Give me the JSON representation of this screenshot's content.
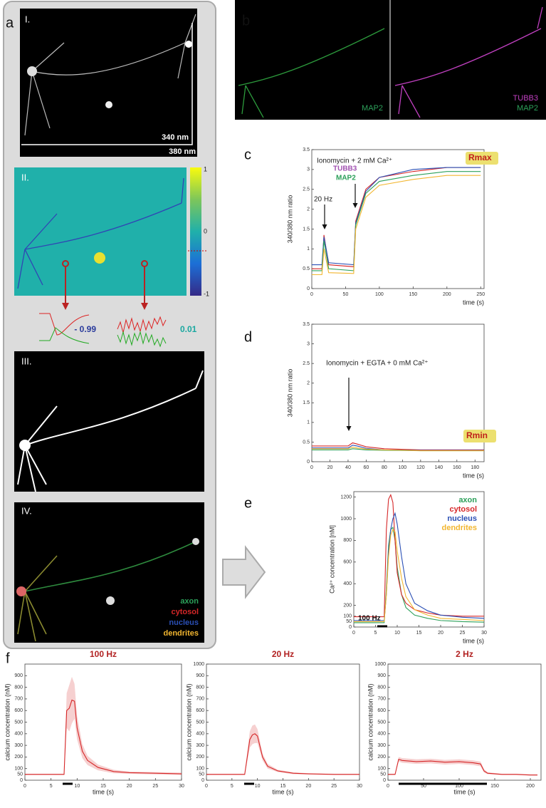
{
  "figure": {
    "panel_labels": [
      "a",
      "b",
      "c",
      "d",
      "e",
      "f"
    ],
    "image_labels": [
      "I.",
      "II.",
      "III.",
      "IV."
    ],
    "wavelengths": [
      "340 nm",
      "380 nm"
    ],
    "colorbar": [
      "1",
      "0",
      "-1"
    ],
    "correlations": [
      "- 0.99",
      "0.01"
    ],
    "b_labels": [
      "MAP2",
      "TUBB3",
      "MAP2"
    ],
    "iv_legend": [
      "axon",
      "cytosol",
      "nucleus",
      "dendrites"
    ]
  },
  "chart_data": [
    {
      "type": "line",
      "x_label": "time (s)",
      "y_label": "340/380 nm ratio",
      "annotations": [
        "Ionomycin + 2 mM Ca²⁺",
        "20 Hz",
        "TUBB3",
        "MAP2",
        "Rmax"
      ],
      "x": [
        0,
        15,
        18,
        25,
        62,
        65,
        80,
        100,
        150,
        200,
        250
      ],
      "series": [
        {
          "color": "#d62728",
          "values": [
            0.5,
            0.5,
            1.35,
            0.6,
            0.55,
            1.7,
            2.5,
            2.8,
            2.95,
            3.05,
            3.05
          ]
        },
        {
          "color": "#2a4fb5",
          "values": [
            0.6,
            0.6,
            1.3,
            0.65,
            0.6,
            1.65,
            2.45,
            2.8,
            3.0,
            3.05,
            3.05
          ]
        },
        {
          "color": "#2ca05a",
          "values": [
            0.45,
            0.45,
            1.2,
            0.5,
            0.45,
            1.6,
            2.4,
            2.7,
            2.85,
            2.95,
            2.95
          ]
        },
        {
          "color": "#f2b630",
          "values": [
            0.35,
            0.35,
            1.0,
            0.4,
            0.38,
            1.5,
            2.3,
            2.6,
            2.75,
            2.85,
            2.85
          ]
        }
      ],
      "xlim": [
        0,
        255
      ],
      "xticks": [
        0,
        50,
        100,
        150,
        200,
        250
      ],
      "ylim": [
        0,
        3.5
      ],
      "yticks": [
        0,
        0.5,
        1,
        1.5,
        2,
        2.5,
        3,
        3.5
      ]
    },
    {
      "type": "line",
      "x_label": "time (s)",
      "y_label": "340/380 nm ratio",
      "annotations": [
        "Ionomycin + EGTA + 0 mM Ca²⁺",
        "Rmin"
      ],
      "x": [
        0,
        40,
        45,
        50,
        60,
        80,
        120,
        190
      ],
      "series": [
        {
          "color": "#d62728",
          "values": [
            0.4,
            0.4,
            0.48,
            0.45,
            0.38,
            0.33,
            0.3,
            0.3
          ]
        },
        {
          "color": "#2a4fb5",
          "values": [
            0.35,
            0.35,
            0.42,
            0.4,
            0.34,
            0.3,
            0.29,
            0.29
          ]
        },
        {
          "color": "#2ca05a",
          "values": [
            0.3,
            0.3,
            0.33,
            0.32,
            0.3,
            0.29,
            0.28,
            0.28
          ]
        },
        {
          "color": "#f2b630",
          "values": [
            0.33,
            0.33,
            0.37,
            0.35,
            0.32,
            0.3,
            0.28,
            0.28
          ]
        }
      ],
      "xlim": [
        0,
        190
      ],
      "xticks": [
        0,
        20,
        40,
        60,
        80,
        100,
        120,
        140,
        160,
        180
      ],
      "ylim": [
        0,
        3.5
      ],
      "yticks": [
        0,
        0.5,
        1,
        1.5,
        2,
        2.5,
        3,
        3.5
      ]
    },
    {
      "type": "line",
      "x_label": "time (s)",
      "y_label": "Ca²⁺ concentration [nM]",
      "annotations": [
        "100 Hz"
      ],
      "x": [
        0,
        7,
        7.5,
        8,
        8.5,
        9,
        9.5,
        10,
        11,
        12,
        14,
        17,
        20,
        25,
        30
      ],
      "series": [
        {
          "name": "axon",
          "color": "#2ca05a",
          "values": [
            40,
            40,
            350,
            750,
            900,
            920,
            800,
            550,
            300,
            180,
            110,
            80,
            60,
            50,
            45
          ]
        },
        {
          "name": "cytosol",
          "color": "#d62728",
          "values": [
            95,
            95,
            900,
            1180,
            1220,
            1150,
            800,
            500,
            300,
            220,
            160,
            130,
            110,
            100,
            100
          ]
        },
        {
          "name": "nucleus",
          "color": "#2a4fb5",
          "values": [
            60,
            60,
            300,
            700,
            900,
            1000,
            1050,
            950,
            650,
            400,
            220,
            150,
            110,
            90,
            80
          ]
        },
        {
          "name": "dendrites",
          "color": "#f2b630",
          "values": [
            50,
            50,
            300,
            650,
            850,
            900,
            880,
            700,
            450,
            280,
            160,
            110,
            80,
            70,
            60
          ]
        }
      ],
      "xlim": [
        0,
        30
      ],
      "xticks": [
        0,
        5,
        10,
        15,
        20,
        25,
        30
      ],
      "ylim": [
        0,
        1250
      ],
      "yticks": [
        0,
        50,
        100,
        200,
        400,
        600,
        800,
        1000,
        1200
      ]
    },
    {
      "type": "line",
      "title": "100 Hz",
      "x_label": "time (s)",
      "y_label": "calcium concentration (nM)",
      "x": [
        0,
        7.5,
        8,
        8.5,
        9,
        9.5,
        10,
        11,
        12,
        14,
        17,
        20,
        25,
        30
      ],
      "series": [
        {
          "color": "#d62728",
          "values": [
            50,
            50,
            600,
            620,
            690,
            680,
            450,
            250,
            170,
            110,
            75,
            65,
            60,
            55
          ],
          "error": [
            5,
            5,
            150,
            200,
            200,
            150,
            100,
            60,
            40,
            25,
            15,
            10,
            10,
            10
          ]
        }
      ],
      "xlim": [
        0,
        30
      ],
      "xticks": [
        0,
        5,
        10,
        15,
        20,
        25,
        30
      ],
      "ylim": [
        0,
        1000
      ],
      "yticks": [
        0,
        50,
        100,
        200,
        300,
        400,
        500,
        600,
        700,
        800,
        900
      ]
    },
    {
      "type": "line",
      "title": "20 Hz",
      "x_label": "time (s)",
      "y_label": "calcium concentration (nM)",
      "x": [
        0,
        7.5,
        8,
        8.5,
        9,
        9.5,
        10,
        11,
        12,
        14,
        17,
        20,
        25,
        30
      ],
      "series": [
        {
          "color": "#d62728",
          "values": [
            50,
            50,
            200,
            350,
            390,
            400,
            380,
            200,
            120,
            80,
            60,
            55,
            50,
            50
          ],
          "error": [
            5,
            5,
            40,
            70,
            80,
            80,
            60,
            30,
            20,
            10,
            8,
            5,
            5,
            5
          ]
        }
      ],
      "xlim": [
        0,
        30
      ],
      "xticks": [
        0,
        5,
        10,
        15,
        20,
        25,
        30
      ],
      "ylim": [
        0,
        1000
      ],
      "yticks": [
        0,
        50,
        100,
        200,
        300,
        400,
        500,
        600,
        700,
        800,
        900,
        1000
      ]
    },
    {
      "type": "line",
      "title": "2 Hz",
      "x_label": "time (s)",
      "y_label": "calcium concentration (nM)",
      "x": [
        0,
        10,
        15,
        20,
        40,
        60,
        80,
        100,
        120,
        130,
        135,
        140,
        160,
        180,
        200,
        210
      ],
      "series": [
        {
          "color": "#d62728",
          "values": [
            50,
            50,
            180,
            170,
            160,
            165,
            155,
            160,
            150,
            140,
            80,
            60,
            50,
            50,
            45,
            45
          ],
          "error": [
            5,
            5,
            20,
            20,
            20,
            20,
            20,
            20,
            20,
            20,
            15,
            8,
            5,
            5,
            5,
            5
          ]
        }
      ],
      "xlim": [
        0,
        215
      ],
      "xticks": [
        0,
        50,
        100,
        150,
        200
      ],
      "ylim": [
        0,
        1000
      ],
      "yticks": [
        0,
        50,
        100,
        200,
        300,
        400,
        500,
        600,
        700,
        800,
        900,
        1000
      ]
    }
  ]
}
